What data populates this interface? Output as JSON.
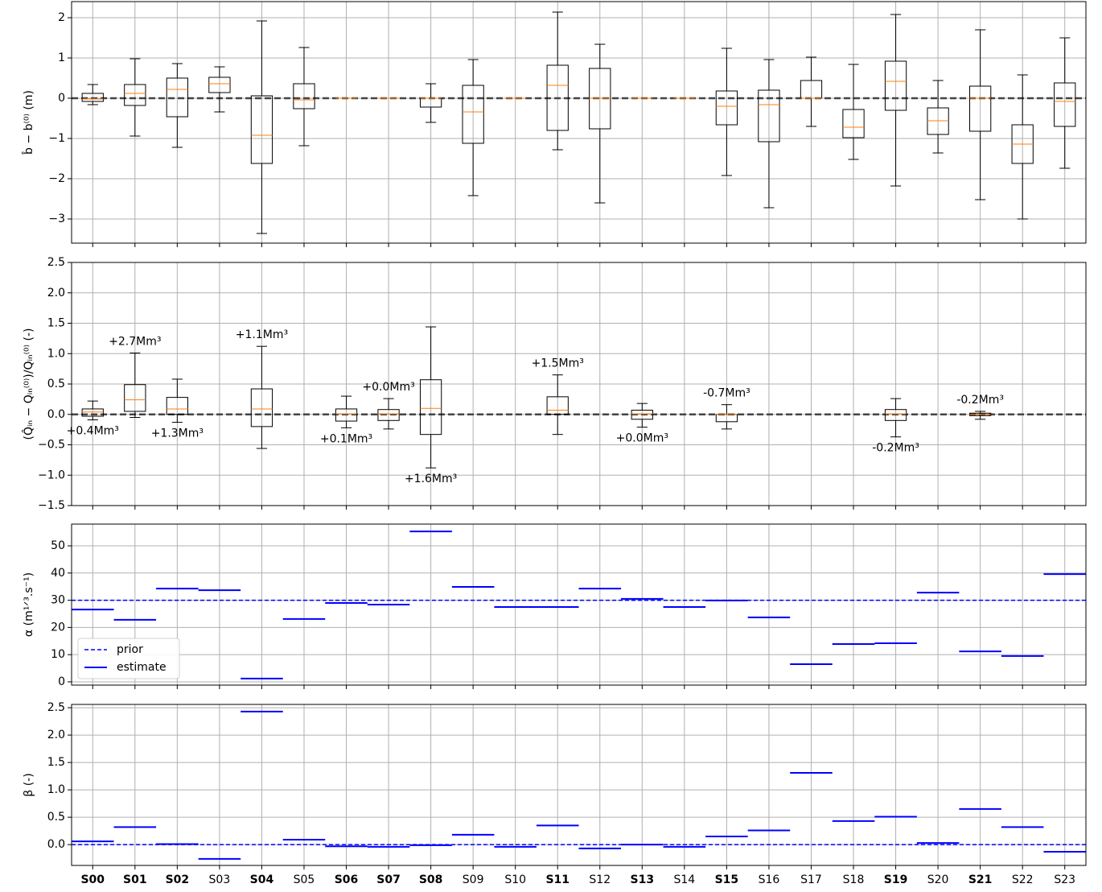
{
  "chart_data": [
    {
      "type": "box",
      "ylabel": "b̂ − b⁽⁰⁾ (m)",
      "ylim": [
        -3.6,
        2.4
      ],
      "yticks": [
        {
          "value": -3,
          "label": "−3"
        },
        {
          "value": -2,
          "label": "−2"
        },
        {
          "value": -1,
          "label": "−1"
        },
        0,
        1,
        2
      ],
      "grid": true,
      "hline": 0,
      "hline_color": "#444444",
      "box_color": "#000000",
      "median_color": "#ff7f0e",
      "boxes": [
        {
          "whislo": -0.16,
          "q1": -0.08,
          "med": -0.02,
          "q3": 0.12,
          "whishi": 0.34
        },
        {
          "whislo": -0.94,
          "q1": -0.18,
          "med": 0.12,
          "q3": 0.34,
          "whishi": 0.98
        },
        {
          "whislo": -1.22,
          "q1": -0.46,
          "med": 0.22,
          "q3": 0.5,
          "whishi": 0.86
        },
        {
          "whislo": -0.34,
          "q1": 0.14,
          "med": 0.36,
          "q3": 0.52,
          "whishi": 0.78
        },
        {
          "whislo": -3.36,
          "q1": -1.62,
          "med": -0.92,
          "q3": 0.06,
          "whishi": 1.92
        },
        {
          "whislo": -1.18,
          "q1": -0.26,
          "med": -0.04,
          "q3": 0.36,
          "whishi": 1.26
        },
        {
          "whislo": 0,
          "q1": 0,
          "med": 0,
          "q3": 0,
          "whishi": 0
        },
        {
          "whislo": 0,
          "q1": 0,
          "med": 0,
          "q3": 0,
          "whishi": 0
        },
        {
          "whislo": -0.6,
          "q1": -0.22,
          "med": 0,
          "q3": 0,
          "whishi": 0.36
        },
        {
          "whislo": -2.42,
          "q1": -1.12,
          "med": -0.34,
          "q3": 0.32,
          "whishi": 0.96
        },
        {
          "whislo": 0,
          "q1": 0,
          "med": 0,
          "q3": 0,
          "whishi": 0
        },
        {
          "whislo": -1.28,
          "q1": -0.8,
          "med": 0.32,
          "q3": 0.82,
          "whishi": 2.14
        },
        {
          "whislo": -2.6,
          "q1": -0.76,
          "med": 0,
          "q3": 0.74,
          "whishi": 1.34
        },
        {
          "whislo": 0,
          "q1": 0,
          "med": 0,
          "q3": 0,
          "whishi": 0
        },
        {
          "whislo": 0,
          "q1": 0,
          "med": 0,
          "q3": 0,
          "whishi": 0
        },
        {
          "whislo": -1.92,
          "q1": -0.66,
          "med": -0.2,
          "q3": 0.18,
          "whishi": 1.24
        },
        {
          "whislo": -2.72,
          "q1": -1.08,
          "med": -0.16,
          "q3": 0.2,
          "whishi": 0.96
        },
        {
          "whislo": -0.7,
          "q1": 0,
          "med": 0,
          "q3": 0.44,
          "whishi": 1.02
        },
        {
          "whislo": -1.52,
          "q1": -0.98,
          "med": -0.72,
          "q3": -0.28,
          "whishi": 0.84
        },
        {
          "whislo": -2.18,
          "q1": -0.3,
          "med": 0.42,
          "q3": 0.92,
          "whishi": 2.08
        },
        {
          "whislo": -1.36,
          "q1": -0.9,
          "med": -0.56,
          "q3": -0.24,
          "whishi": 0.44
        },
        {
          "whislo": -2.52,
          "q1": -0.82,
          "med": 0,
          "q3": 0.3,
          "whishi": 1.7
        },
        {
          "whislo": -3,
          "q1": -1.62,
          "med": -1.14,
          "q3": -0.66,
          "whishi": 0.58
        },
        {
          "whislo": -1.74,
          "q1": -0.7,
          "med": -0.08,
          "q3": 0.38,
          "whishi": 1.5
        }
      ]
    },
    {
      "type": "box",
      "ylabel": "(Q̂ᵢₙ − Qᵢₙ⁽⁰⁾)/Qᵢₙ⁽⁰⁾ (-)",
      "ylim": [
        -1.5,
        2.5
      ],
      "yticks": [
        {
          "value": -1.5,
          "label": "−1.5"
        },
        {
          "value": -1,
          "label": "−1.0"
        },
        {
          "value": -0.5,
          "label": "−0.5"
        },
        {
          "value": 0,
          "label": "0.0"
        },
        0.5,
        {
          "value": 1,
          "label": "1.0"
        },
        1.5,
        {
          "value": 2,
          "label": "2.0"
        },
        2.5
      ],
      "grid": true,
      "hline": 0,
      "hline_color": "#444444",
      "box_color": "#000000",
      "median_color": "#ff7f0e",
      "boxes": [
        {
          "whislo": -0.09,
          "q1": -0.03,
          "med": 0.04,
          "q3": 0.09,
          "whishi": 0.22,
          "label": "+0.4Mm³",
          "label_position": "below"
        },
        {
          "whislo": -0.05,
          "q1": 0.05,
          "med": 0.24,
          "q3": 0.49,
          "whishi": 1.01,
          "label": "+2.7Mm³",
          "label_position": "above"
        },
        {
          "whislo": -0.13,
          "q1": 0,
          "med": 0.09,
          "q3": 0.28,
          "whishi": 0.58,
          "label": "+1.3Mm³",
          "label_position": "below"
        },
        null,
        {
          "whislo": -0.56,
          "q1": -0.2,
          "med": 0.09,
          "q3": 0.42,
          "whishi": 1.12,
          "label": "+1.1Mm³",
          "label_position": "above"
        },
        null,
        {
          "whislo": -0.22,
          "q1": -0.11,
          "med": 0.01,
          "q3": 0.09,
          "whishi": 0.3,
          "label": "+0.1Mm³",
          "label_position": "below"
        },
        {
          "whislo": -0.24,
          "q1": -0.1,
          "med": 0.01,
          "q3": 0.08,
          "whishi": 0.26,
          "label": "+0.0Mm³",
          "label_position": "above"
        },
        {
          "whislo": -0.88,
          "q1": -0.33,
          "med": 0.1,
          "q3": 0.57,
          "whishi": 1.44,
          "label": "+1.6Mm³",
          "label_position": "below"
        },
        null,
        null,
        {
          "whislo": -0.33,
          "q1": 0,
          "med": 0.07,
          "q3": 0.29,
          "whishi": 0.65,
          "label": "+1.5Mm³",
          "label_position": "above"
        },
        null,
        {
          "whislo": -0.21,
          "q1": -0.08,
          "med": 0.01,
          "q3": 0.07,
          "whishi": 0.18,
          "label": "+0.0Mm³",
          "label_position": "below"
        },
        null,
        {
          "whislo": -0.24,
          "q1": -0.12,
          "med": 0,
          "q3": 0,
          "whishi": 0.16,
          "label": "-0.7Mm³",
          "label_position": "above"
        },
        null,
        null,
        null,
        {
          "whislo": -0.37,
          "q1": -0.1,
          "med": 0.01,
          "q3": 0.08,
          "whishi": 0.26,
          "label": "-0.2Mm³",
          "label_position": "below"
        },
        null,
        {
          "whislo": -0.08,
          "q1": -0.02,
          "med": 0,
          "q3": 0.02,
          "whishi": 0.05,
          "label": "-0.2Mm³",
          "label_position": "above"
        },
        null,
        null
      ]
    },
    {
      "type": "step",
      "ylabel": "α (m¹ᐟ³.s⁻¹)",
      "ylim": [
        -1.2,
        58
      ],
      "yticks": [
        0,
        10,
        20,
        30,
        40,
        50
      ],
      "grid": true,
      "legend": "lower left",
      "prior": {
        "name": "prior",
        "value": 30,
        "color": "#0000ff"
      },
      "estimate": {
        "name": "estimate",
        "color": "#0000ff",
        "values": [
          26.6,
          22.8,
          34.3,
          33.7,
          1.2,
          23.1,
          29.0,
          28.4,
          55.3,
          34.9,
          27.5,
          27.5,
          34.3,
          30.5,
          27.5,
          29.9,
          23.7,
          6.5,
          13.9,
          14.2,
          32.8,
          11.2,
          9.5,
          39.6
        ]
      }
    },
    {
      "type": "step",
      "ylabel": "β (-)",
      "ylim": [
        -0.38,
        2.56
      ],
      "yticks": [
        {
          "value": 0,
          "label": "0.0"
        },
        0.5,
        {
          "value": 1,
          "label": "1.0"
        },
        1.5,
        {
          "value": 2,
          "label": "2.0"
        },
        2.5
      ],
      "grid": true,
      "prior": {
        "value": 0,
        "color": "#0000ff"
      },
      "estimate": {
        "color": "#0000ff",
        "values": [
          0.06,
          0.32,
          0.01,
          -0.26,
          2.43,
          0.09,
          -0.03,
          -0.04,
          -0.01,
          0.18,
          -0.04,
          0.35,
          -0.07,
          0,
          -0.04,
          0.15,
          0.26,
          1.31,
          0.43,
          0.51,
          0.03,
          0.65,
          0.32,
          -0.13
        ]
      },
      "categories": [
        "S00",
        "S01",
        "S02",
        "S03",
        "S04",
        "S05",
        "S06",
        "S07",
        "S08",
        "S09",
        "S10",
        "S11",
        "S12",
        "S13",
        "S14",
        "S15",
        "S16",
        "S17",
        "S18",
        "S19",
        "S20",
        "S21",
        "S22",
        "S23"
      ],
      "category_bold": [
        true,
        true,
        true,
        false,
        true,
        false,
        true,
        true,
        true,
        false,
        false,
        true,
        false,
        true,
        false,
        true,
        false,
        false,
        false,
        true,
        false,
        true,
        false,
        false
      ]
    }
  ]
}
